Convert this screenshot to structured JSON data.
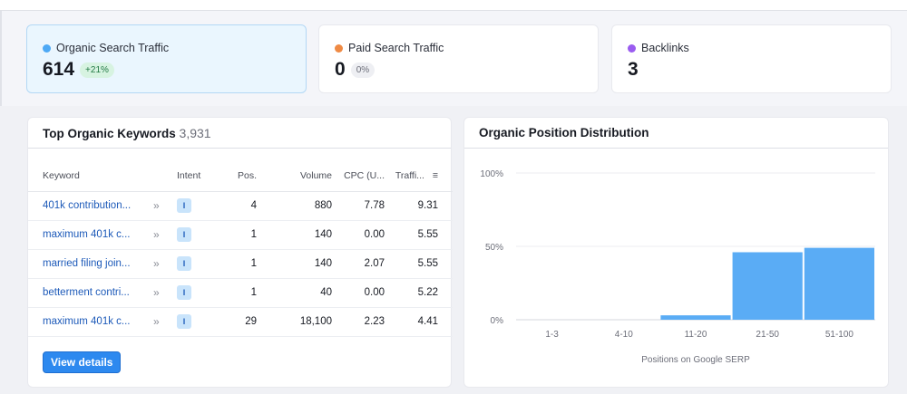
{
  "cards": [
    {
      "label": "Organic Search Traffic",
      "value": "614",
      "badge": "+21%",
      "dot_color": "#4da9f5",
      "badge_bg": "#d7f3e1",
      "badge_color": "#227a45"
    },
    {
      "label": "Paid Search Traffic",
      "value": "0",
      "badge": "0%",
      "dot_color": "#ef8a44",
      "badge_bg": "#eeeff3",
      "badge_color": "#6c6e79"
    },
    {
      "label": "Backlinks",
      "value": "3",
      "dot_color": "#9a5cf0"
    }
  ],
  "keywords": {
    "title": "Top Organic Keywords",
    "count": "3,931",
    "columns": [
      "Keyword",
      "Intent",
      "Pos.",
      "Volume",
      "CPC (U...",
      "Traffi..."
    ],
    "rows": [
      {
        "keyword": "401k contribution...",
        "intent": "I",
        "pos": "4",
        "volume": "880",
        "cpc": "7.78",
        "traffic": "9.31"
      },
      {
        "keyword": "maximum 401k c...",
        "intent": "I",
        "pos": "1",
        "volume": "140",
        "cpc": "0.00",
        "traffic": "5.55"
      },
      {
        "keyword": "married filing join...",
        "intent": "I",
        "pos": "1",
        "volume": "140",
        "cpc": "2.07",
        "traffic": "5.55"
      },
      {
        "keyword": "betterment contri...",
        "intent": "I",
        "pos": "1",
        "volume": "40",
        "cpc": "0.00",
        "traffic": "5.22"
      },
      {
        "keyword": "maximum 401k c...",
        "intent": "I",
        "pos": "29",
        "volume": "18,100",
        "cpc": "2.23",
        "traffic": "4.41"
      }
    ],
    "view_details": "View details"
  },
  "distribution": {
    "title": "Organic Position Distribution"
  },
  "chart_data": {
    "type": "bar",
    "categories": [
      "1-3",
      "4-10",
      "11-20",
      "21-50",
      "51-100"
    ],
    "values": [
      0,
      0,
      3,
      46,
      49
    ],
    "xlabel": "Positions on Google SERP",
    "ylim": [
      0,
      100
    ],
    "yticks": [
      "0%",
      "50%",
      "100%"
    ],
    "grid": true,
    "bar_color": "#5aacf5"
  }
}
